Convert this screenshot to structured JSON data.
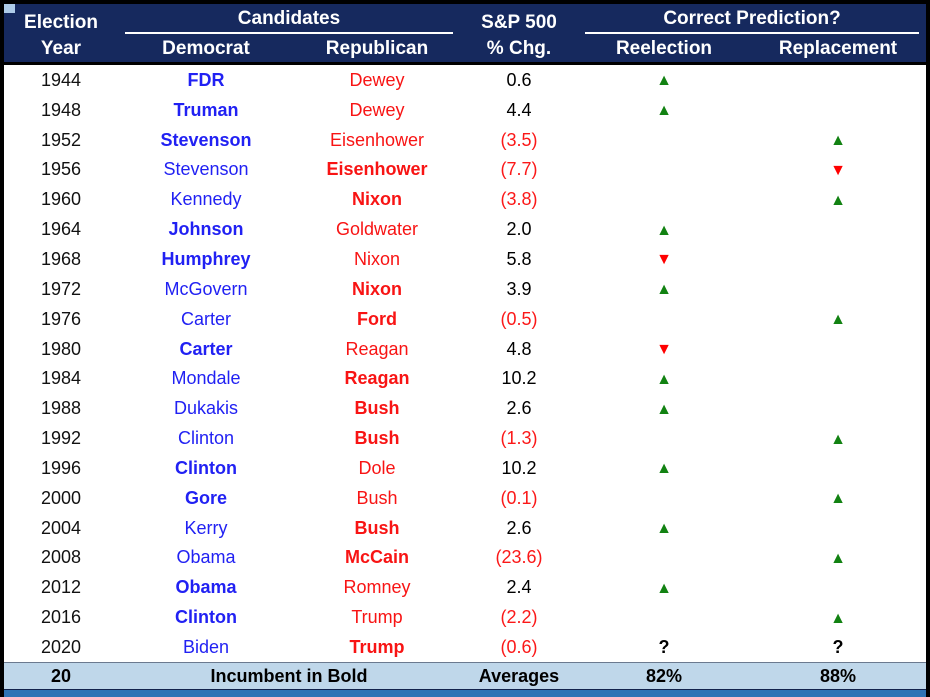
{
  "header": {
    "election": "Election",
    "year": "Year",
    "candidates": "Candidates",
    "democrat": "Democrat",
    "republican": "Republican",
    "sp500": "S&P 500",
    "chg": "% Chg.",
    "prediction": "Correct Prediction?",
    "reelection": "Reelection",
    "replacement": "Replacement"
  },
  "footer": {
    "count": "20",
    "note": "Incumbent in Bold",
    "averages": "Averages",
    "reelection_avg": "82%",
    "replacement_avg": "88%"
  },
  "markers": {
    "up": "▲",
    "down": "▼",
    "question": "?"
  },
  "colors": {
    "header_bg": "#16295e",
    "footer_bg": "#bfd7ea",
    "bottom_bar": "#2e74b5",
    "democrat_text": "#2121f3",
    "republican_text": "#f81414",
    "negative_text": "#fb1818",
    "positive_text": "#000000",
    "green_marker": "#128212",
    "red_marker": "#ff0000"
  },
  "chart_data": {
    "type": "table",
    "title": "Election years, candidates, S&P 500 % change and prediction correctness",
    "columns": [
      "Election Year",
      "Democrat",
      "Republican",
      "S&P 500 % Chg.",
      "Reelection",
      "Replacement"
    ],
    "rows": [
      {
        "year": "1944",
        "democrat": "FDR",
        "democrat_bold": true,
        "republican": "Dewey",
        "republican_bold": false,
        "sp_chg": "0.6",
        "sp_negative": false,
        "reelection": "up_green",
        "replacement": ""
      },
      {
        "year": "1948",
        "democrat": "Truman",
        "democrat_bold": true,
        "republican": "Dewey",
        "republican_bold": false,
        "sp_chg": "4.4",
        "sp_negative": false,
        "reelection": "up_green",
        "replacement": ""
      },
      {
        "year": "1952",
        "democrat": "Stevenson",
        "democrat_bold": true,
        "republican": "Eisenhower",
        "republican_bold": false,
        "sp_chg": "(3.5)",
        "sp_negative": true,
        "reelection": "",
        "replacement": "up_green"
      },
      {
        "year": "1956",
        "democrat": "Stevenson",
        "democrat_bold": false,
        "republican": "Eisenhower",
        "republican_bold": true,
        "sp_chg": "(7.7)",
        "sp_negative": true,
        "reelection": "",
        "replacement": "down_red"
      },
      {
        "year": "1960",
        "democrat": "Kennedy",
        "democrat_bold": false,
        "republican": "Nixon",
        "republican_bold": true,
        "sp_chg": "(3.8)",
        "sp_negative": true,
        "reelection": "",
        "replacement": "up_green"
      },
      {
        "year": "1964",
        "democrat": "Johnson",
        "democrat_bold": true,
        "republican": "Goldwater",
        "republican_bold": false,
        "sp_chg": "2.0",
        "sp_negative": false,
        "reelection": "up_green",
        "replacement": ""
      },
      {
        "year": "1968",
        "democrat": "Humphrey",
        "democrat_bold": true,
        "republican": "Nixon",
        "republican_bold": false,
        "sp_chg": "5.8",
        "sp_negative": false,
        "reelection": "down_red",
        "replacement": ""
      },
      {
        "year": "1972",
        "democrat": "McGovern",
        "democrat_bold": false,
        "republican": "Nixon",
        "republican_bold": true,
        "sp_chg": "3.9",
        "sp_negative": false,
        "reelection": "up_green",
        "replacement": ""
      },
      {
        "year": "1976",
        "democrat": "Carter",
        "democrat_bold": false,
        "republican": "Ford",
        "republican_bold": true,
        "sp_chg": "(0.5)",
        "sp_negative": true,
        "reelection": "",
        "replacement": "up_green"
      },
      {
        "year": "1980",
        "democrat": "Carter",
        "democrat_bold": true,
        "republican": "Reagan",
        "republican_bold": false,
        "sp_chg": "4.8",
        "sp_negative": false,
        "reelection": "down_red",
        "replacement": ""
      },
      {
        "year": "1984",
        "democrat": "Mondale",
        "democrat_bold": false,
        "republican": "Reagan",
        "republican_bold": true,
        "sp_chg": "10.2",
        "sp_negative": false,
        "reelection": "up_green",
        "replacement": ""
      },
      {
        "year": "1988",
        "democrat": "Dukakis",
        "democrat_bold": false,
        "republican": "Bush",
        "republican_bold": true,
        "sp_chg": "2.6",
        "sp_negative": false,
        "reelection": "up_green",
        "replacement": ""
      },
      {
        "year": "1992",
        "democrat": "Clinton",
        "democrat_bold": false,
        "republican": "Bush",
        "republican_bold": true,
        "sp_chg": "(1.3)",
        "sp_negative": true,
        "reelection": "",
        "replacement": "up_green"
      },
      {
        "year": "1996",
        "democrat": "Clinton",
        "democrat_bold": true,
        "republican": "Dole",
        "republican_bold": false,
        "sp_chg": "10.2",
        "sp_negative": false,
        "reelection": "up_green",
        "replacement": ""
      },
      {
        "year": "2000",
        "democrat": "Gore",
        "democrat_bold": true,
        "republican": "Bush",
        "republican_bold": false,
        "sp_chg": "(0.1)",
        "sp_negative": true,
        "reelection": "",
        "replacement": "up_green"
      },
      {
        "year": "2004",
        "democrat": "Kerry",
        "democrat_bold": false,
        "republican": "Bush",
        "republican_bold": true,
        "sp_chg": "2.6",
        "sp_negative": false,
        "reelection": "up_green",
        "replacement": ""
      },
      {
        "year": "2008",
        "democrat": "Obama",
        "democrat_bold": false,
        "republican": "McCain",
        "republican_bold": true,
        "sp_chg": "(23.6)",
        "sp_negative": true,
        "reelection": "",
        "replacement": "up_green"
      },
      {
        "year": "2012",
        "democrat": "Obama",
        "democrat_bold": true,
        "republican": "Romney",
        "republican_bold": false,
        "sp_chg": "2.4",
        "sp_negative": false,
        "reelection": "up_green",
        "replacement": ""
      },
      {
        "year": "2016",
        "democrat": "Clinton",
        "democrat_bold": true,
        "republican": "Trump",
        "republican_bold": false,
        "sp_chg": "(2.2)",
        "sp_negative": true,
        "reelection": "",
        "replacement": "up_green"
      },
      {
        "year": "2020",
        "democrat": "Biden",
        "democrat_bold": false,
        "republican": "Trump",
        "republican_bold": true,
        "sp_chg": "(0.6)",
        "sp_negative": true,
        "reelection": "question",
        "replacement": "question"
      }
    ]
  }
}
